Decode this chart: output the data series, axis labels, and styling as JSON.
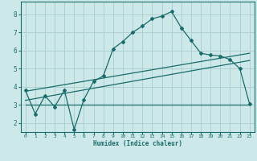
{
  "xlabel": "Humidex (Indice chaleur)",
  "background_color": "#cce8e8",
  "grid_color": "#aacccc",
  "line_color": "#1a6b6b",
  "xlim": [
    -0.5,
    23.5
  ],
  "ylim": [
    1.5,
    8.7
  ],
  "xticks": [
    0,
    1,
    2,
    3,
    4,
    5,
    6,
    7,
    8,
    9,
    10,
    11,
    12,
    13,
    14,
    15,
    16,
    17,
    18,
    19,
    20,
    21,
    22,
    23
  ],
  "yticks": [
    2,
    3,
    4,
    5,
    6,
    7,
    8
  ],
  "curve1_x": [
    0,
    1,
    2,
    3,
    4,
    5,
    6,
    7,
    8,
    9,
    10,
    11,
    12,
    13,
    14,
    15,
    16,
    17,
    18,
    19,
    20,
    21,
    22,
    23
  ],
  "curve1_y": [
    3.8,
    2.5,
    3.5,
    2.9,
    3.8,
    1.65,
    3.3,
    4.3,
    4.6,
    6.1,
    6.5,
    7.0,
    7.35,
    7.75,
    7.9,
    8.15,
    7.25,
    6.55,
    5.85,
    5.75,
    5.7,
    5.5,
    5.0,
    3.05
  ],
  "curve2_x": [
    0,
    22,
    23
  ],
  "curve2_y": [
    3.0,
    3.0,
    3.0
  ],
  "curve3_x": [
    0,
    23
  ],
  "curve3_y": [
    3.75,
    5.85
  ],
  "curve4_x": [
    0,
    23
  ],
  "curve4_y": [
    3.25,
    5.45
  ]
}
